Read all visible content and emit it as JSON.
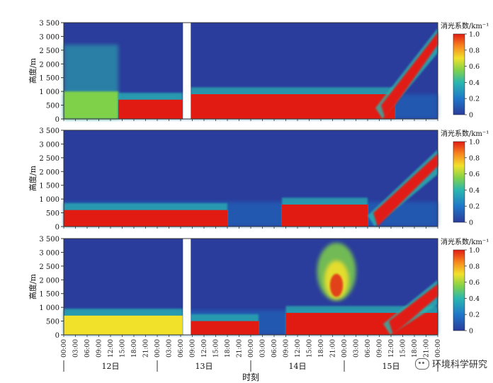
{
  "watermark": {
    "text": "环境科学研究",
    "icon": "wechat-icon"
  },
  "chart_data": [
    {
      "type": "heatmap",
      "panel_label": "",
      "ylabel": "高度/m",
      "ylim": [
        0,
        3500
      ],
      "yticks": [
        "0",
        "500",
        "1 000",
        "1 500",
        "2 000",
        "2 500",
        "3 000",
        "3 500"
      ],
      "colorbar": {
        "title": "消光系数/km⁻¹",
        "range": [
          0,
          1.0
        ],
        "ticks": [
          "0",
          "0.2",
          "0.4",
          "0.6",
          "0.8",
          "1.0"
        ]
      },
      "x_range_hours": [
        0,
        96
      ],
      "gaps_hours": [
        [
          30.6,
          32.6
        ]
      ],
      "layers": [
        {
          "start_hour": 0,
          "end_hour": 14,
          "top_m": 700,
          "value": 0.45,
          "note": "aerosol"
        },
        {
          "start_hour": 14,
          "end_hour": 30.5,
          "top_m": 700,
          "value": 1.0
        },
        {
          "start_hour": 32.6,
          "end_hour": 85,
          "top_m": 900,
          "value": 1.0
        },
        {
          "start_hour": 80,
          "end_hour": 96,
          "top_m": 3300,
          "value": 1.0,
          "note": "elevated cloud"
        }
      ]
    },
    {
      "type": "heatmap",
      "panel_label": "",
      "ylabel": "高度/m",
      "ylim": [
        0,
        3500
      ],
      "yticks": [
        "0",
        "500",
        "1 000",
        "1 500",
        "2 000",
        "2 500",
        "3 000",
        "3 500"
      ],
      "colorbar": {
        "title": "消光系数/km⁻¹",
        "range": [
          0,
          1.0
        ],
        "ticks": [
          "0",
          "0.2",
          "0.4",
          "0.6",
          "0.8",
          "1.0"
        ]
      },
      "x_range_hours": [
        0,
        96
      ],
      "gaps_hours": [],
      "layers": [
        {
          "start_hour": 0,
          "end_hour": 42,
          "top_m": 600,
          "value": 1.0
        },
        {
          "start_hour": 56,
          "end_hour": 78,
          "top_m": 800,
          "value": 1.0
        },
        {
          "start_hour": 78,
          "end_hour": 96,
          "top_m": 2800,
          "value": 1.0,
          "note": "elevated cloud"
        }
      ]
    },
    {
      "type": "heatmap",
      "panel_label": "",
      "ylabel": "高度/m",
      "ylim": [
        0,
        3500
      ],
      "yticks": [
        "0",
        "500",
        "1 000",
        "1 500",
        "2 000",
        "2 500",
        "3 000",
        "3 500"
      ],
      "colorbar": {
        "title": "消光系数/km⁻¹",
        "range": [
          0,
          1.0
        ],
        "ticks": [
          "0",
          "0.2",
          "0.4",
          "0.6",
          "0.8",
          "1.0"
        ]
      },
      "x_range_hours": [
        0,
        96
      ],
      "gaps_hours": [
        [
          30.6,
          32.6
        ]
      ],
      "layers": [
        {
          "start_hour": 0,
          "end_hour": 30.5,
          "top_m": 700,
          "value": 0.6
        },
        {
          "start_hour": 32.6,
          "end_hour": 50,
          "top_m": 500,
          "value": 1.0
        },
        {
          "start_hour": 57,
          "end_hour": 96,
          "top_m": 800,
          "value": 1.0
        },
        {
          "start_hour": 65,
          "end_hour": 75,
          "top_m": 3300,
          "value": 0.7,
          "note": "plume"
        },
        {
          "start_hour": 82,
          "end_hour": 96,
          "top_m": 2000,
          "value": 1.0,
          "note": "elevated layer"
        }
      ]
    }
  ],
  "xaxis": {
    "title": "时刻",
    "tick_labels": [
      "00:00",
      "03:00",
      "06:00",
      "09:00",
      "12:00",
      "15:00",
      "18:00",
      "21:00",
      "00:00",
      "03:00",
      "06:00",
      "09:00",
      "12:00",
      "15:00",
      "18:00",
      "21:00",
      "00:00",
      "03:00",
      "06:00",
      "09:00",
      "12:00",
      "15:00",
      "18:00",
      "21:00",
      "00:00",
      "03:00",
      "06:00",
      "09:00",
      "12:00",
      "15:00",
      "18:00",
      "21:00",
      "00:00"
    ],
    "days": [
      "12日",
      "13日",
      "14日",
      "15日"
    ]
  }
}
